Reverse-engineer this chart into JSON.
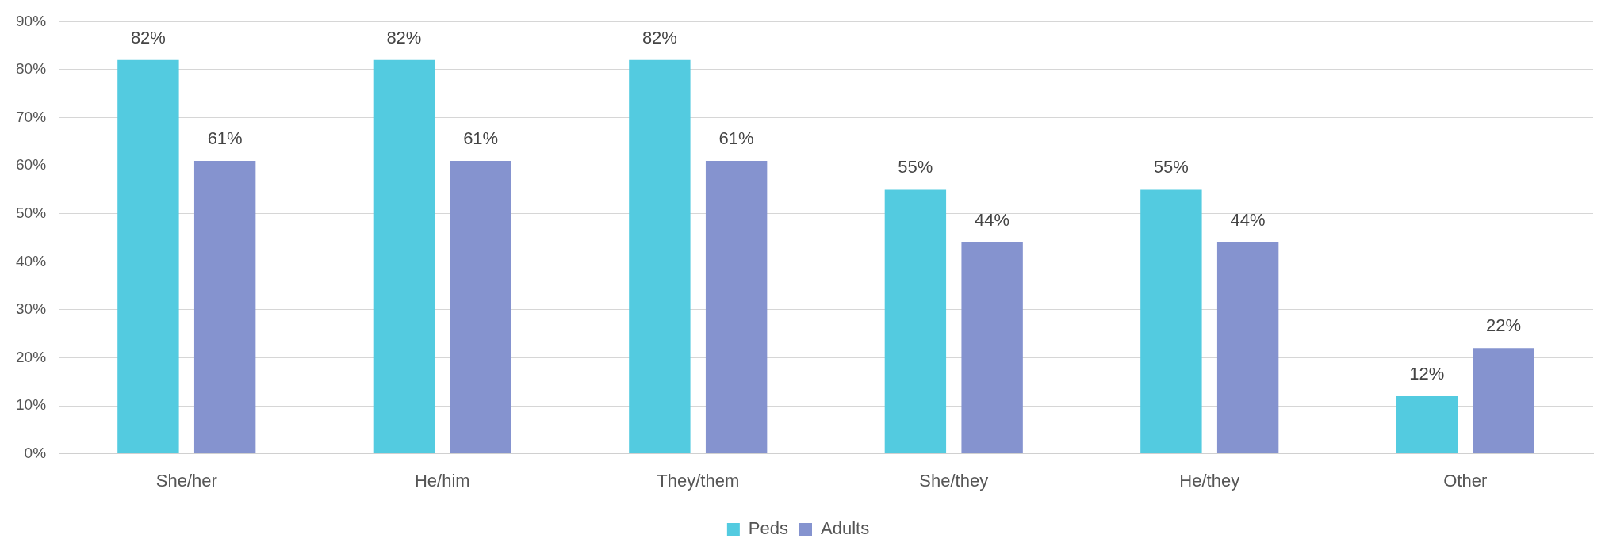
{
  "chart_data": {
    "type": "bar",
    "categories": [
      "She/her",
      "He/him",
      "They/them",
      "She/they",
      "He/they",
      "Other"
    ],
    "series": [
      {
        "name": "Peds",
        "color": "#53cbe0",
        "values": [
          82,
          82,
          82,
          55,
          55,
          12
        ],
        "value_labels": [
          "82%",
          "82%",
          "82%",
          "55%",
          "55%",
          "12%"
        ]
      },
      {
        "name": "Adults",
        "color": "#8593cf",
        "values": [
          61,
          61,
          61,
          44,
          44,
          22
        ],
        "value_labels": [
          "61%",
          "61%",
          "61%",
          "44%",
          "44%",
          "22%"
        ]
      }
    ],
    "ylim": [
      0,
      90
    ],
    "yticks": [
      {
        "value": 0,
        "label": "0%"
      },
      {
        "value": 10,
        "label": "10%"
      },
      {
        "value": 20,
        "label": "20%"
      },
      {
        "value": 30,
        "label": "30%"
      },
      {
        "value": 40,
        "label": "40%"
      },
      {
        "value": 50,
        "label": "50%"
      },
      {
        "value": 60,
        "label": "60%"
      },
      {
        "value": 70,
        "label": "70%"
      },
      {
        "value": 80,
        "label": "80%"
      },
      {
        "value": 90,
        "label": "90%"
      }
    ],
    "grid": "y",
    "legend": "bottom"
  }
}
